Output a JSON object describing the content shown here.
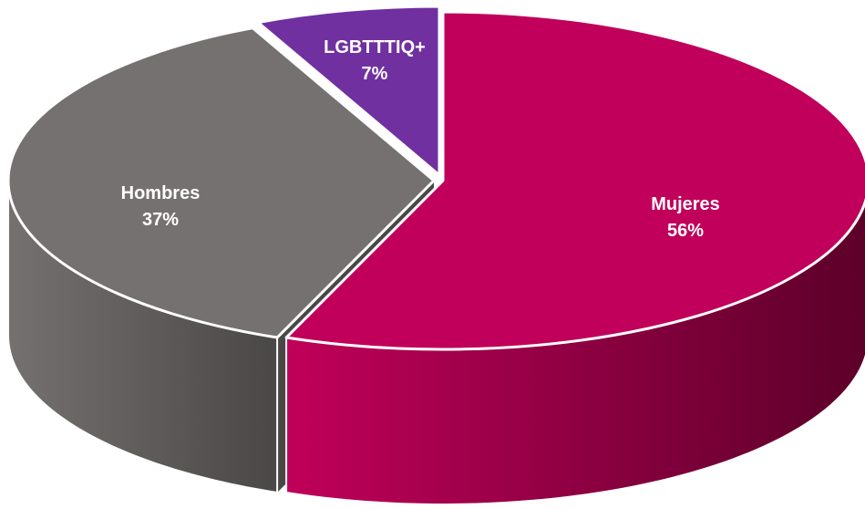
{
  "chart_data": {
    "type": "pie",
    "style": "3d",
    "title": "",
    "slices": [
      {
        "label": "Mujeres",
        "value": 56,
        "display": "56%",
        "color": "#c0005a",
        "side_dark": "#5c0029"
      },
      {
        "label": "Hombres",
        "value": 37,
        "display": "37%",
        "color": "#767171",
        "side_dark": "#4a4747"
      },
      {
        "label": "LGBTTTIQ+",
        "value": 7,
        "display": "7%",
        "color": "#7030a0",
        "side_dark": "#3f1a5c"
      }
    ],
    "legend": "none"
  }
}
